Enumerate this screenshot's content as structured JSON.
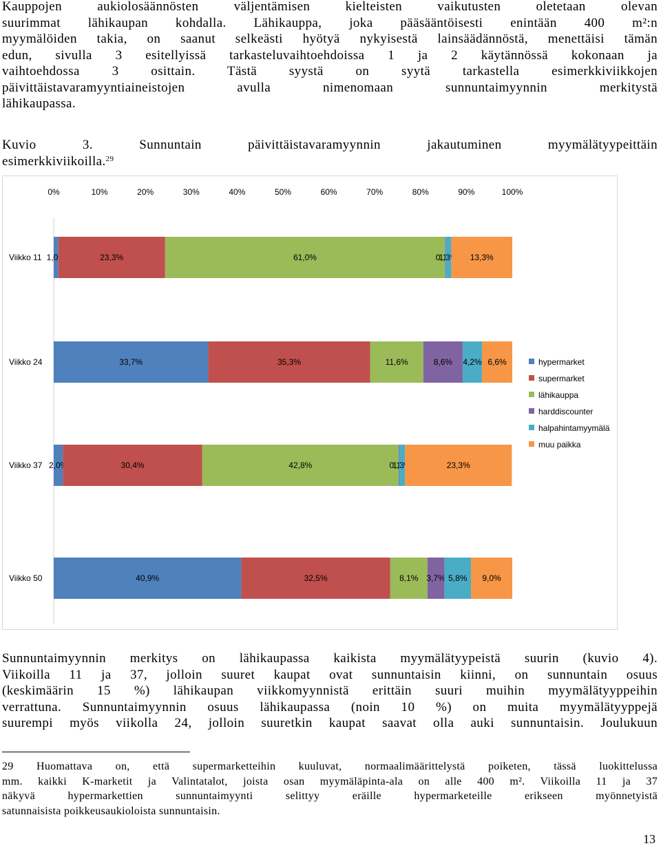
{
  "intro_lines": [
    "Kauppojen aukiolosäännösten väljentämisen kielteisten vaikutusten oletetaan olevan",
    "suurimmat lähikaupan kohdalla. Lähikauppa, joka pääsääntöisesti enintään 400 m²:n",
    "myymälöiden takia, on saanut selkeästi hyötyä nykyisestä lainsäädännöstä, menettäisi tämän",
    "edun, sivulla 3 esitellyissä tarkasteluvaihtoehdoissa 1 ja 2 käytännössä kokonaan ja",
    "vaihtoehdossa 3 osittain. Tästä syystä on syytä tarkastella esimerkkiviikkojen",
    "päivittäistavaramyyntiaineistojen avulla nimenomaan sunnuntaimyynnin merkitystä",
    "lähikaupassa."
  ],
  "caption_line1": "Kuvio 3. Sunnuntain päivittäistavaramyynnin jakautuminen myymälätyypeittäin",
  "caption_line2": "esimerkkiviikoilla.",
  "caption_ref": "29",
  "chart_data": {
    "type": "bar",
    "orientation": "horizontal",
    "stacked": true,
    "percent_stacked": true,
    "x_ticks": [
      "0%",
      "10%",
      "20%",
      "30%",
      "40%",
      "50%",
      "60%",
      "70%",
      "80%",
      "90%",
      "100%"
    ],
    "x_axis_position": "top",
    "xlim": [
      0,
      100
    ],
    "grid": false,
    "legend_position": "right",
    "categories": [
      "Viikko 11",
      "Viikko 24",
      "Viikko 37",
      "Viikko 50"
    ],
    "series": [
      {
        "name": "hypermarket",
        "color": "#4f81bd",
        "values": [
          1.0,
          33.7,
          2.0,
          40.9
        ],
        "labels": [
          "1,0%",
          "33,7%",
          "2,0%",
          "40,9%"
        ]
      },
      {
        "name": "supermarket",
        "color": "#c0504d",
        "values": [
          23.3,
          35.3,
          30.4,
          32.5
        ],
        "labels": [
          "23,3%",
          "35,3%",
          "30,4%",
          "32,5%"
        ]
      },
      {
        "name": "lähikauppa",
        "color": "#9bbb59",
        "values": [
          61.0,
          11.6,
          42.8,
          8.1
        ],
        "labels": [
          "61,0%",
          "11,6%",
          "42,8%",
          "8,1%"
        ]
      },
      {
        "name": "harddiscounter",
        "color": "#8064a2",
        "values": [
          0.1,
          8.6,
          0.1,
          3.7
        ],
        "labels": [
          "0,1%",
          "8,6%",
          "0,1%",
          "3,7%"
        ]
      },
      {
        "name": "halpahintamyymälä",
        "color": "#4bacc6",
        "values": [
          1.3,
          4.2,
          1.3,
          5.8
        ],
        "labels": [
          "1,3%",
          "4,2%",
          "1,3%",
          "5,8%"
        ]
      },
      {
        "name": "muu paikka",
        "color": "#f79646",
        "values": [
          13.3,
          6.6,
          23.3,
          9.0
        ],
        "labels": [
          "13,3%",
          "6,6%",
          "23,3%",
          "9,0%"
        ]
      }
    ]
  },
  "discussion_lines": [
    "Sunnuntaimyynnin merkitys on lähikaupassa kaikista myymälätyypeistä suurin (kuvio 4).",
    "Viikoilla 11 ja 37, jolloin suuret kaupat ovat sunnuntaisin kiinni, on sunnuntain osuus",
    "(keskimäärin 15 %) lähikaupan viikkomyynnistä erittäin suuri muihin myymälätyyppeihin",
    "verrattuna. Sunnuntaimyynnin osuus lähikaupassa (noin 10 %) on muita myymälätyyppejä",
    "suurempi myös viikolla 24, jolloin suuretkin kaupat saavat olla auki sunnuntaisin. Joulukuun"
  ],
  "footnote_number": "29",
  "footnote_lines": [
    "Huomattava on, että supermarketteihin kuuluvat, normaalimäärittelystä poiketen, tässä luokittelussa",
    "mm. kaikki K-marketit ja Valintatalot, joista osan myymäläpinta-ala on alle 400 m². Viikoilla 11 ja 37",
    "näkyvä hypermarkettien sunnuntaimyynti selittyy eräille hypermarketeille erikseen myönnetyistä",
    "satunnaisista poikkeusaukioloista sunnuntaisin."
  ],
  "page_number": "13"
}
